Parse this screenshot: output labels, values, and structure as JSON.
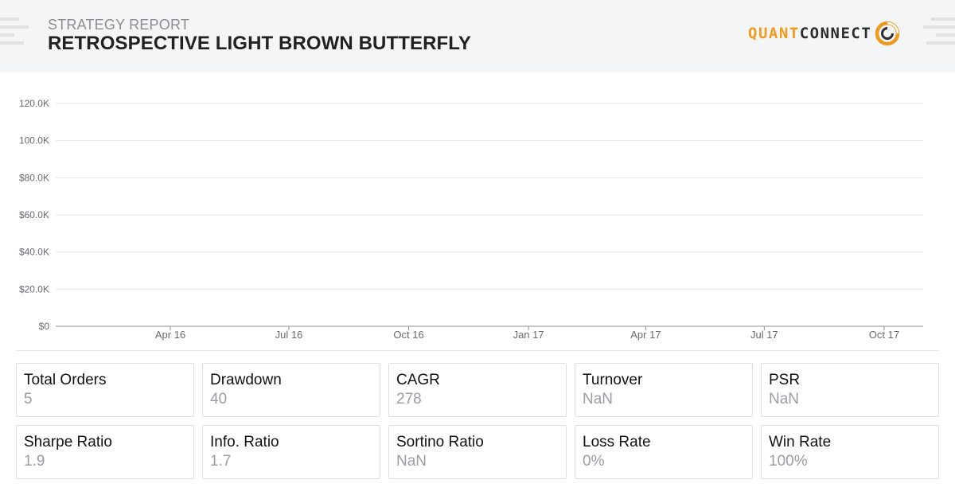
{
  "header": {
    "eyebrow": "STRATEGY REPORT",
    "title": "RETROSPECTIVE LIGHT BROWN BUTTERFLY",
    "logo_quant": "QUANT",
    "logo_connect": "CONNECT"
  },
  "colors": {
    "brand_orange": "#f29a1e",
    "brand_dark": "#2b2d31",
    "header_bg": "#f4f5f7",
    "axis_text": "#666a71",
    "value_text": "#9a9da3"
  },
  "chart_data": {
    "type": "line",
    "title": "",
    "xlabel": "",
    "ylabel": "",
    "y_ticks": [
      "$0",
      "$20.0K",
      "$40.0K",
      "$60.0K",
      "$80.0K",
      "100.0K",
      "120.0K"
    ],
    "ylim": [
      0,
      120000
    ],
    "x_ticks": [
      "Apr 16",
      "Jul 16",
      "Oct 16",
      "Jan 17",
      "Apr 17",
      "Jul 17",
      "Oct 17"
    ],
    "xlim": [
      "2016-01-04",
      "2017-10-31"
    ],
    "grid": true,
    "series": []
  },
  "stats": [
    {
      "label": "Total Orders",
      "value": "5"
    },
    {
      "label": "Drawdown",
      "value": "40"
    },
    {
      "label": "CAGR",
      "value": "278"
    },
    {
      "label": "Turnover",
      "value": "NaN"
    },
    {
      "label": "PSR",
      "value": "NaN"
    },
    {
      "label": "Sharpe Ratio",
      "value": "1.9"
    },
    {
      "label": "Info. Ratio",
      "value": "1.7"
    },
    {
      "label": "Sortino Ratio",
      "value": "NaN"
    },
    {
      "label": "Loss Rate",
      "value": "0%"
    },
    {
      "label": "Win Rate",
      "value": "100%"
    }
  ]
}
